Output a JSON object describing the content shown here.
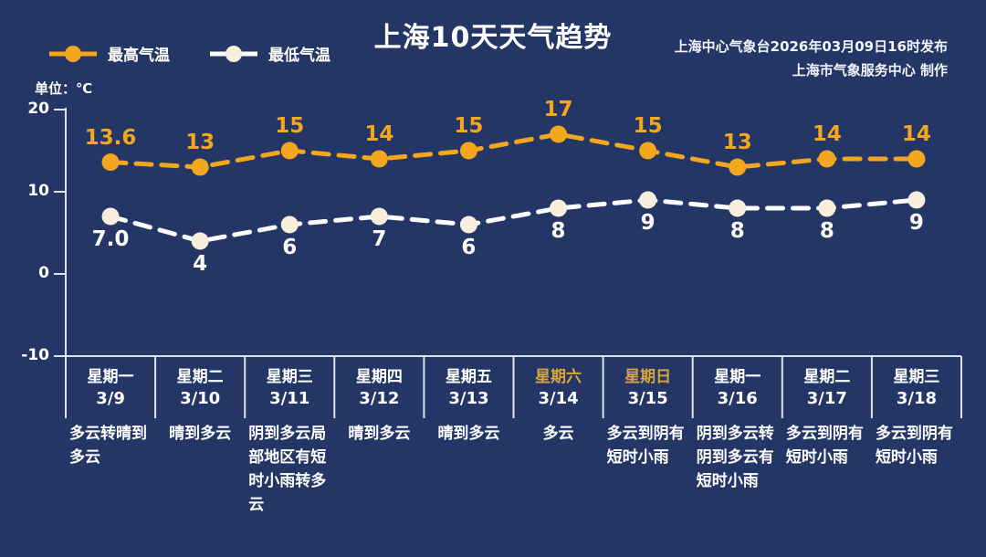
{
  "header": {
    "title": "上海10天天气趋势",
    "publisher_line1": "上海中心气象台2026年03月09日16时发布",
    "publisher_line2": "上海市气象服务中心  制作"
  },
  "legend": {
    "high_label": "最高气温",
    "low_label": "最低气温"
  },
  "axis": {
    "unit_label": "单位：℃"
  },
  "colors": {
    "background": "#243665",
    "high_series": "#f2a71e",
    "low_series_line": "#ffffff",
    "low_marker_fill": "#f7eedc",
    "axis_line": "#dde2ee",
    "weekend_text": "#d9a43e"
  },
  "chart_data": {
    "type": "line",
    "title": "上海10天天气趋势",
    "ylabel": "℃",
    "ylim": [
      -10,
      20
    ],
    "yticks": [
      20,
      10,
      0,
      -10
    ],
    "grid": false,
    "legend_position": "top-left",
    "line_style": "dashed",
    "categories": [
      "3/9",
      "3/10",
      "3/11",
      "3/12",
      "3/13",
      "3/14",
      "3/15",
      "3/16",
      "3/17",
      "3/18"
    ],
    "series": [
      {
        "name": "最高气温",
        "color": "#f2a71e",
        "marker_fill": "#f2a71e",
        "values": [
          13.6,
          13,
          15,
          14,
          15,
          17,
          15,
          13,
          14,
          14
        ],
        "labels": [
          "13.6",
          "13",
          "15",
          "14",
          "15",
          "17",
          "15",
          "13",
          "14",
          "14"
        ]
      },
      {
        "name": "最低气温",
        "color": "#ffffff",
        "marker_fill": "#f7eedc",
        "values": [
          7.0,
          4,
          6,
          7,
          6,
          8,
          9,
          8,
          8,
          9
        ],
        "labels": [
          "7.0",
          "4",
          "6",
          "7",
          "6",
          "8",
          "9",
          "8",
          "8",
          "9"
        ]
      }
    ],
    "days": [
      {
        "weekday": "星期一",
        "date": "3/9",
        "weekend": false,
        "weather": "多云转晴到多云"
      },
      {
        "weekday": "星期二",
        "date": "3/10",
        "weekend": false,
        "weather": "晴到多云"
      },
      {
        "weekday": "星期三",
        "date": "3/11",
        "weekend": false,
        "weather": "阴到多云局部地区有短时小雨转多云"
      },
      {
        "weekday": "星期四",
        "date": "3/12",
        "weekend": false,
        "weather": "晴到多云"
      },
      {
        "weekday": "星期五",
        "date": "3/13",
        "weekend": false,
        "weather": "晴到多云"
      },
      {
        "weekday": "星期六",
        "date": "3/14",
        "weekend": true,
        "weather": "多云"
      },
      {
        "weekday": "星期日",
        "date": "3/15",
        "weekend": true,
        "weather": "多云到阴有短时小雨"
      },
      {
        "weekday": "星期一",
        "date": "3/16",
        "weekend": false,
        "weather": "阴到多云转阴到多云有短时小雨"
      },
      {
        "weekday": "星期二",
        "date": "3/17",
        "weekend": false,
        "weather": "多云到阴有短时小雨"
      },
      {
        "weekday": "星期三",
        "date": "3/18",
        "weekend": false,
        "weather": "多云到阴有短时小雨"
      }
    ]
  }
}
